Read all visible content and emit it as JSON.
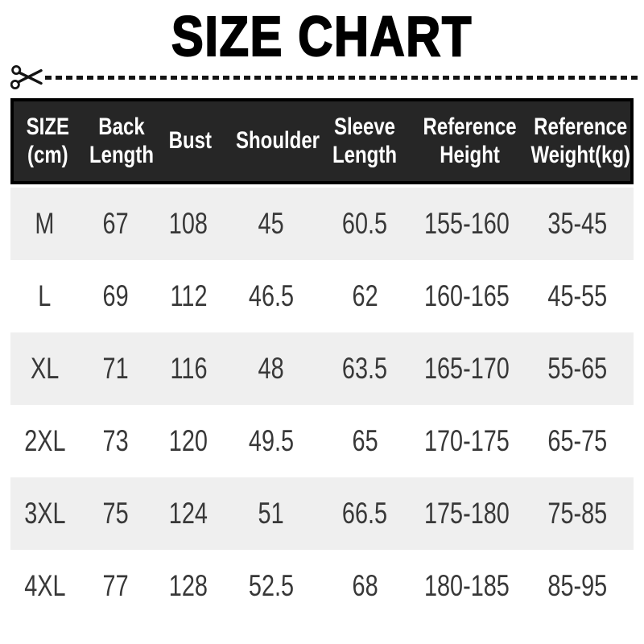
{
  "page": {
    "title": "SIZE CHART"
  },
  "cut_line": {
    "icon": "scissors-icon",
    "style": "dashed"
  },
  "colors": {
    "title_text": "#000000",
    "dash": "#141414",
    "header_bg": "#262626",
    "header_border": "#000000",
    "header_text": "#ffffff",
    "row_even_bg": "#ffffff",
    "row_odd_bg": "#efefef",
    "body_text": "#383838"
  },
  "table": {
    "columns": [
      {
        "key": "size",
        "lines": [
          "SIZE",
          "(cm)"
        ]
      },
      {
        "key": "back-length",
        "lines": [
          "Back",
          "Length"
        ]
      },
      {
        "key": "bust",
        "lines": [
          "Bust"
        ]
      },
      {
        "key": "shoulder",
        "lines": [
          "Shoulder"
        ]
      },
      {
        "key": "sleeve-length",
        "lines": [
          "Sleeve",
          "Length"
        ]
      },
      {
        "key": "reference-height",
        "lines": [
          "Reference",
          "Height"
        ]
      },
      {
        "key": "reference-weight",
        "lines": [
          "Reference",
          "Weight(kg)"
        ]
      }
    ],
    "rows": [
      [
        "M",
        "67",
        "108",
        "45",
        "60.5",
        "155-160",
        "35-45"
      ],
      [
        "L",
        "69",
        "112",
        "46.5",
        "62",
        "160-165",
        "45-55"
      ],
      [
        "XL",
        "71",
        "116",
        "48",
        "63.5",
        "165-170",
        "55-65"
      ],
      [
        "2XL",
        "73",
        "120",
        "49.5",
        "65",
        "170-175",
        "65-75"
      ],
      [
        "3XL",
        "75",
        "124",
        "51",
        "66.5",
        "175-180",
        "75-85"
      ],
      [
        "4XL",
        "77",
        "128",
        "52.5",
        "68",
        "180-185",
        "85-95"
      ]
    ]
  },
  "chart_data": {
    "type": "table",
    "title": "SIZE CHART",
    "unit": "cm",
    "columns": [
      "SIZE (cm)",
      "Back Length",
      "Bust",
      "Shoulder",
      "Sleeve Length",
      "Reference Height",
      "Reference Weight(kg)"
    ],
    "rows": [
      [
        "M",
        "67",
        "108",
        "45",
        "60.5",
        "155-160",
        "35-45"
      ],
      [
        "L",
        "69",
        "112",
        "46.5",
        "62",
        "160-165",
        "45-55"
      ],
      [
        "XL",
        "71",
        "116",
        "48",
        "63.5",
        "165-170",
        "55-65"
      ],
      [
        "2XL",
        "73",
        "120",
        "49.5",
        "65",
        "170-175",
        "65-75"
      ],
      [
        "3XL",
        "75",
        "124",
        "51",
        "66.5",
        "175-180",
        "75-85"
      ],
      [
        "4XL",
        "77",
        "128",
        "52.5",
        "68",
        "180-185",
        "85-95"
      ]
    ]
  }
}
